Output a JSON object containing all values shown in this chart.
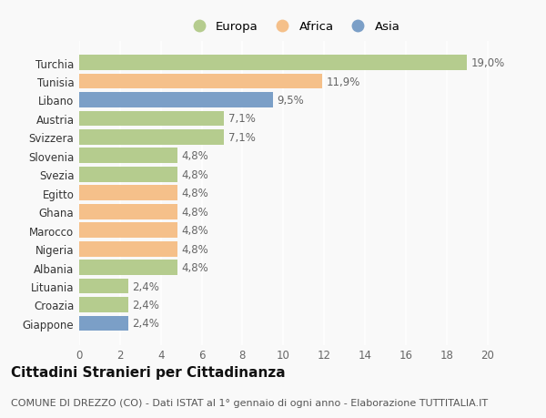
{
  "categories": [
    "Giappone",
    "Croazia",
    "Lituania",
    "Albania",
    "Nigeria",
    "Marocco",
    "Ghana",
    "Egitto",
    "Svezia",
    "Slovenia",
    "Svizzera",
    "Austria",
    "Libano",
    "Tunisia",
    "Turchia"
  ],
  "values": [
    2.4,
    2.4,
    2.4,
    4.8,
    4.8,
    4.8,
    4.8,
    4.8,
    4.8,
    4.8,
    7.1,
    7.1,
    9.5,
    11.9,
    19.0
  ],
  "continents": [
    "Asia",
    "Europa",
    "Europa",
    "Europa",
    "Africa",
    "Africa",
    "Africa",
    "Africa",
    "Europa",
    "Europa",
    "Europa",
    "Europa",
    "Asia",
    "Africa",
    "Europa"
  ],
  "labels": [
    "2,4%",
    "2,4%",
    "2,4%",
    "4,8%",
    "4,8%",
    "4,8%",
    "4,8%",
    "4,8%",
    "4,8%",
    "4,8%",
    "7,1%",
    "7,1%",
    "9,5%",
    "11,9%",
    "19,0%"
  ],
  "color_map": {
    "Europa": "#b5cc8e",
    "Africa": "#f5c08a",
    "Asia": "#7b9fc7"
  },
  "legend_entries": [
    "Europa",
    "Africa",
    "Asia"
  ],
  "xlim": [
    0,
    21
  ],
  "xticks": [
    0,
    2,
    4,
    6,
    8,
    10,
    12,
    14,
    16,
    18,
    20
  ],
  "title": "Cittadini Stranieri per Cittadinanza",
  "subtitle": "COMUNE DI DREZZO (CO) - Dati ISTAT al 1° gennaio di ogni anno - Elaborazione TUTTITALIA.IT",
  "background_color": "#f9f9f9",
  "bar_height": 0.82,
  "grid_color": "#ffffff",
  "label_fontsize": 8.5,
  "tick_fontsize": 8.5,
  "title_fontsize": 11,
  "subtitle_fontsize": 8
}
